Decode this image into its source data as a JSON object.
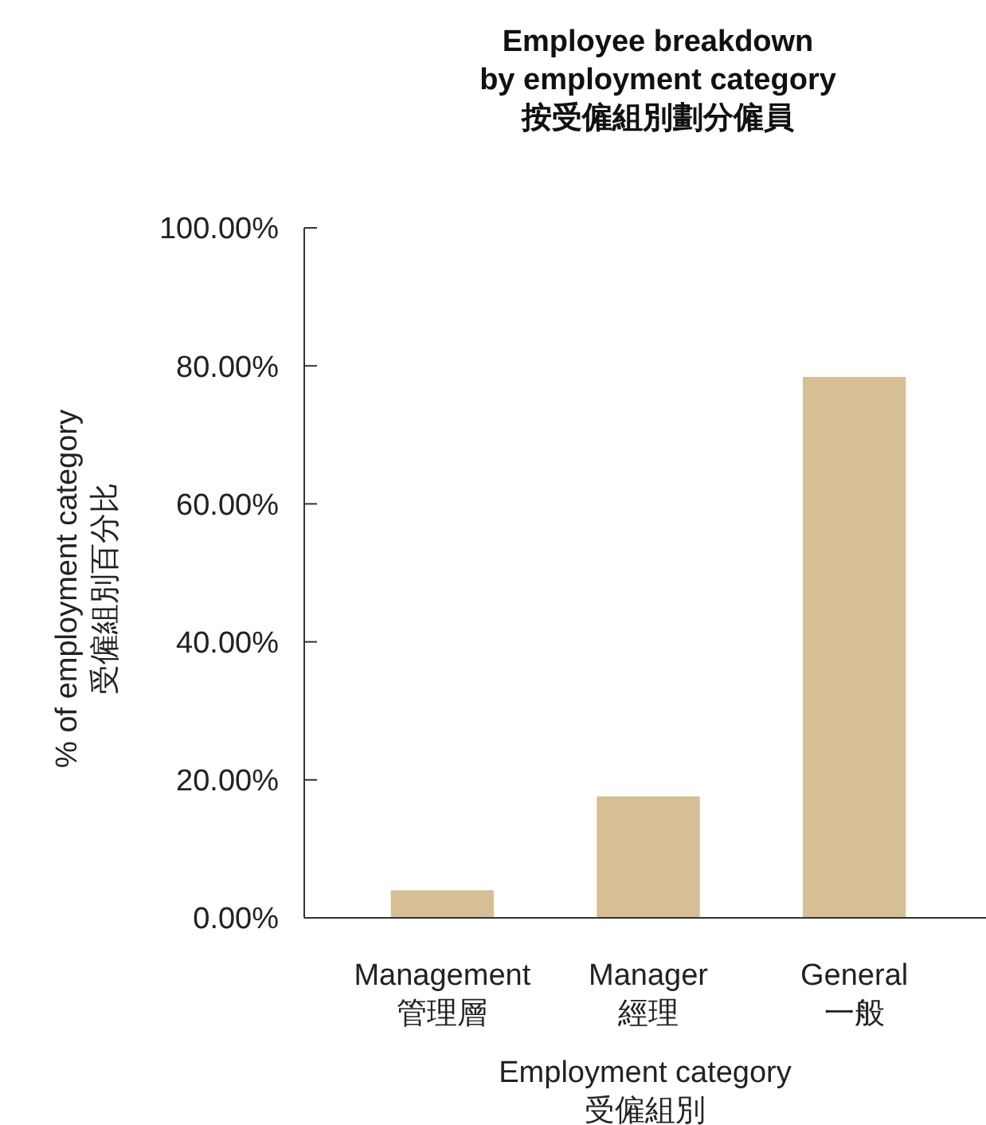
{
  "chart_data": {
    "type": "bar",
    "title": "Employee breakdown\nby employment category\n按受僱組別劃分僱員",
    "xlabel": "Employment category\n受僱組別",
    "ylabel": "% of employment category\n受僱組別百分比",
    "categories": [
      "Management\n管理層",
      "Manager\n經理",
      "General\n一般"
    ],
    "values": [
      4.0,
      17.6,
      78.4
    ],
    "color": "#d6bf94",
    "ylim": [
      0,
      100
    ],
    "yticks": [
      {
        "value": 0,
        "label": "0.00%"
      },
      {
        "value": 20,
        "label": "20.00%"
      },
      {
        "value": 40,
        "label": "40.00%"
      },
      {
        "value": 60,
        "label": "60.00%"
      },
      {
        "value": 80,
        "label": "80.00%"
      },
      {
        "value": 100,
        "label": "100.00%"
      }
    ],
    "grid": false,
    "legend": false
  }
}
